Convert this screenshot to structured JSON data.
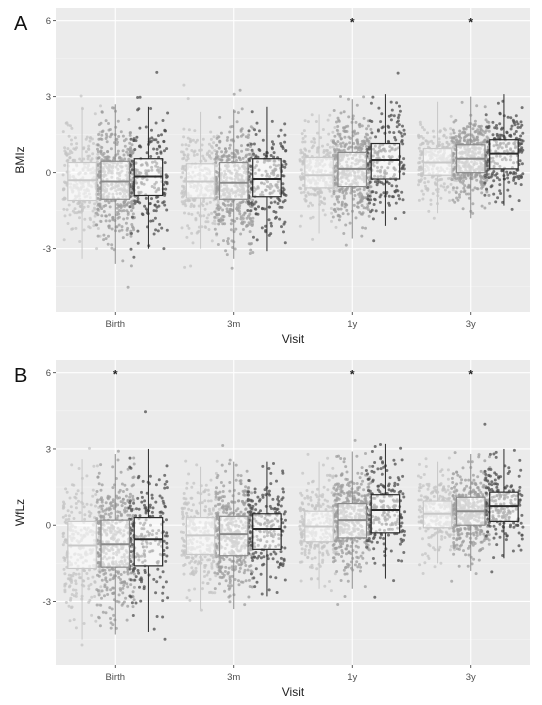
{
  "chart_data": [
    {
      "type": "box",
      "panel_label": "A",
      "ylabel": "BMIz",
      "xlabel": "Visit",
      "categories": [
        "Birth",
        "3m",
        "1y",
        "3y"
      ],
      "ylim": [
        -5.5,
        6.5
      ],
      "yticks": [
        -3,
        0,
        3,
        6
      ],
      "grid": true,
      "significance": [
        "",
        "",
        "*",
        "*"
      ],
      "groups": [
        {
          "stroke": "#c8c8c8",
          "point_color": "#c4c4c4",
          "boxes": [
            {
              "q1": -1.1,
              "median": -0.3,
              "q3": 0.4,
              "wlo": -3.4,
              "whi": 2.6
            },
            {
              "q1": -1.0,
              "median": -0.35,
              "q3": 0.35,
              "wlo": -3.0,
              "whi": 2.4
            },
            {
              "q1": -0.6,
              "median": -0.1,
              "q3": 0.6,
              "wlo": -2.4,
              "whi": 2.3
            },
            {
              "q1": -0.1,
              "median": 0.4,
              "q3": 0.95,
              "wlo": -1.6,
              "whi": 2.8
            }
          ]
        },
        {
          "stroke": "#8a8a8a",
          "point_color": "#9e9e9e",
          "boxes": [
            {
              "q1": -1.05,
              "median": -0.35,
              "q3": 0.45,
              "wlo": -3.6,
              "whi": 2.7
            },
            {
              "q1": -1.05,
              "median": -0.4,
              "q3": 0.4,
              "wlo": -3.4,
              "whi": 2.5
            },
            {
              "q1": -0.55,
              "median": 0.15,
              "q3": 0.8,
              "wlo": -2.6,
              "whi": 2.9
            },
            {
              "q1": 0.0,
              "median": 0.55,
              "q3": 1.1,
              "wlo": -1.8,
              "whi": 3.0
            }
          ]
        },
        {
          "stroke": "#2b2b2b",
          "point_color": "#4d4d4d",
          "boxes": [
            {
              "q1": -0.9,
              "median": -0.15,
              "q3": 0.55,
              "wlo": -3.0,
              "whi": 2.6
            },
            {
              "q1": -0.95,
              "median": -0.25,
              "q3": 0.55,
              "wlo": -3.1,
              "whi": 2.6
            },
            {
              "q1": -0.25,
              "median": 0.5,
              "q3": 1.15,
              "wlo": -2.1,
              "whi": 3.1
            },
            {
              "q1": 0.15,
              "median": 0.75,
              "q3": 1.3,
              "wlo": -1.3,
              "whi": 3.1
            }
          ]
        }
      ]
    },
    {
      "type": "box",
      "panel_label": "B",
      "ylabel": "WfLz",
      "xlabel": "Visit",
      "categories": [
        "Birth",
        "3m",
        "1y",
        "3y"
      ],
      "ylim": [
        -5.5,
        6.5
      ],
      "yticks": [
        -3,
        0,
        3,
        6
      ],
      "grid": true,
      "significance": [
        "*",
        "",
        "*",
        "*"
      ],
      "groups": [
        {
          "stroke": "#c8c8c8",
          "point_color": "#c4c4c4",
          "boxes": [
            {
              "q1": -1.7,
              "median": -0.8,
              "q3": 0.15,
              "wlo": -4.5,
              "whi": 2.6
            },
            {
              "q1": -1.15,
              "median": -0.4,
              "q3": 0.3,
              "wlo": -3.3,
              "whi": 2.3
            },
            {
              "q1": -0.65,
              "median": -0.05,
              "q3": 0.55,
              "wlo": -2.5,
              "whi": 2.5
            },
            {
              "q1": -0.1,
              "median": 0.45,
              "q3": 0.95,
              "wlo": -1.5,
              "whi": 2.5
            }
          ]
        },
        {
          "stroke": "#8a8a8a",
          "point_color": "#9e9e9e",
          "boxes": [
            {
              "q1": -1.65,
              "median": -0.75,
              "q3": 0.2,
              "wlo": -4.3,
              "whi": 2.8
            },
            {
              "q1": -1.2,
              "median": -0.35,
              "q3": 0.35,
              "wlo": -3.3,
              "whi": 2.5
            },
            {
              "q1": -0.5,
              "median": 0.2,
              "q3": 0.85,
              "wlo": -2.5,
              "whi": 2.9
            },
            {
              "q1": 0.0,
              "median": 0.55,
              "q3": 1.1,
              "wlo": -1.8,
              "whi": 2.8
            }
          ]
        },
        {
          "stroke": "#2b2b2b",
          "point_color": "#4d4d4d",
          "boxes": [
            {
              "q1": -1.6,
              "median": -0.55,
              "q3": 0.3,
              "wlo": -4.2,
              "whi": 3.0
            },
            {
              "q1": -0.95,
              "median": -0.15,
              "q3": 0.45,
              "wlo": -2.8,
              "whi": 2.5
            },
            {
              "q1": -0.3,
              "median": 0.6,
              "q3": 1.2,
              "wlo": -2.1,
              "whi": 3.2
            },
            {
              "q1": 0.15,
              "median": 0.75,
              "q3": 1.3,
              "wlo": -1.3,
              "whi": 3.0
            }
          ]
        }
      ]
    }
  ]
}
